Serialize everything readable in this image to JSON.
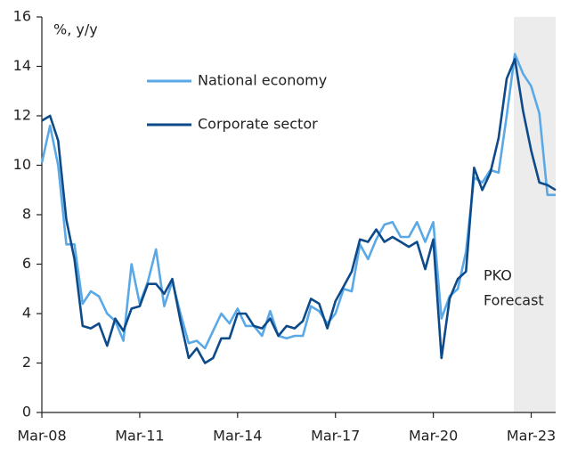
{
  "chart_data": {
    "type": "line",
    "ylabel": "%, y/y",
    "categories": [
      "Mar-08",
      null,
      null,
      null,
      null,
      null,
      null,
      null,
      null,
      null,
      null,
      null,
      "Mar-11",
      null,
      null,
      null,
      null,
      null,
      null,
      null,
      null,
      null,
      null,
      null,
      "Mar-14",
      null,
      null,
      null,
      null,
      null,
      null,
      null,
      null,
      null,
      null,
      null,
      "Mar-17",
      null,
      null,
      null,
      null,
      null,
      null,
      null,
      null,
      null,
      null,
      null,
      "Mar-20",
      null,
      null,
      null,
      null,
      null,
      null,
      null,
      null,
      null,
      null,
      null,
      "Mar-23",
      null,
      null,
      null
    ],
    "series": [
      {
        "name": "National economy",
        "color": "#5aa9e6",
        "values": [
          10.1,
          11.6,
          10.0,
          6.8,
          6.8,
          4.4,
          4.9,
          4.7,
          4.0,
          3.7,
          2.9,
          6.0,
          4.4,
          5.3,
          6.6,
          4.3,
          5.3,
          4.0,
          2.8,
          2.9,
          2.6,
          3.3,
          4.0,
          3.6,
          4.2,
          3.5,
          3.5,
          3.1,
          4.1,
          3.1,
          3.0,
          3.1,
          3.1,
          4.3,
          4.1,
          3.6,
          4.0,
          5.0,
          4.9,
          6.8,
          6.2,
          7.0,
          7.6,
          7.7,
          7.1,
          7.1,
          7.7,
          6.9,
          7.7,
          3.8,
          4.7,
          5.0,
          6.5,
          9.5,
          9.3,
          9.8,
          9.7,
          12.0,
          14.5,
          13.7,
          13.2,
          12.1,
          8.8,
          8.8
        ]
      },
      {
        "name": "Corporate sector",
        "color": "#0d4a8a",
        "values": [
          11.8,
          12.0,
          11.0,
          7.8,
          6.2,
          3.5,
          3.4,
          3.6,
          2.7,
          3.8,
          3.3,
          4.2,
          4.3,
          5.2,
          5.2,
          4.8,
          5.4,
          3.7,
          2.2,
          2.6,
          2.0,
          2.2,
          3.0,
          3.0,
          4.0,
          4.0,
          3.5,
          3.4,
          3.8,
          3.1,
          3.5,
          3.4,
          3.7,
          4.6,
          4.4,
          3.4,
          4.5,
          5.1,
          5.7,
          7.0,
          6.9,
          7.4,
          6.9,
          7.1,
          6.9,
          6.7,
          6.9,
          5.8,
          7.0,
          2.2,
          4.6,
          5.4,
          5.7,
          9.9,
          9.0,
          9.7,
          11.1,
          13.5,
          14.3,
          12.2,
          10.6,
          9.3,
          9.2,
          9.0
        ]
      }
    ],
    "annotation": [
      "PKO",
      "Forecast"
    ],
    "ylim": [
      0,
      16
    ],
    "yticks": [
      0,
      2,
      4,
      6,
      8,
      10,
      12,
      14,
      16
    ]
  }
}
